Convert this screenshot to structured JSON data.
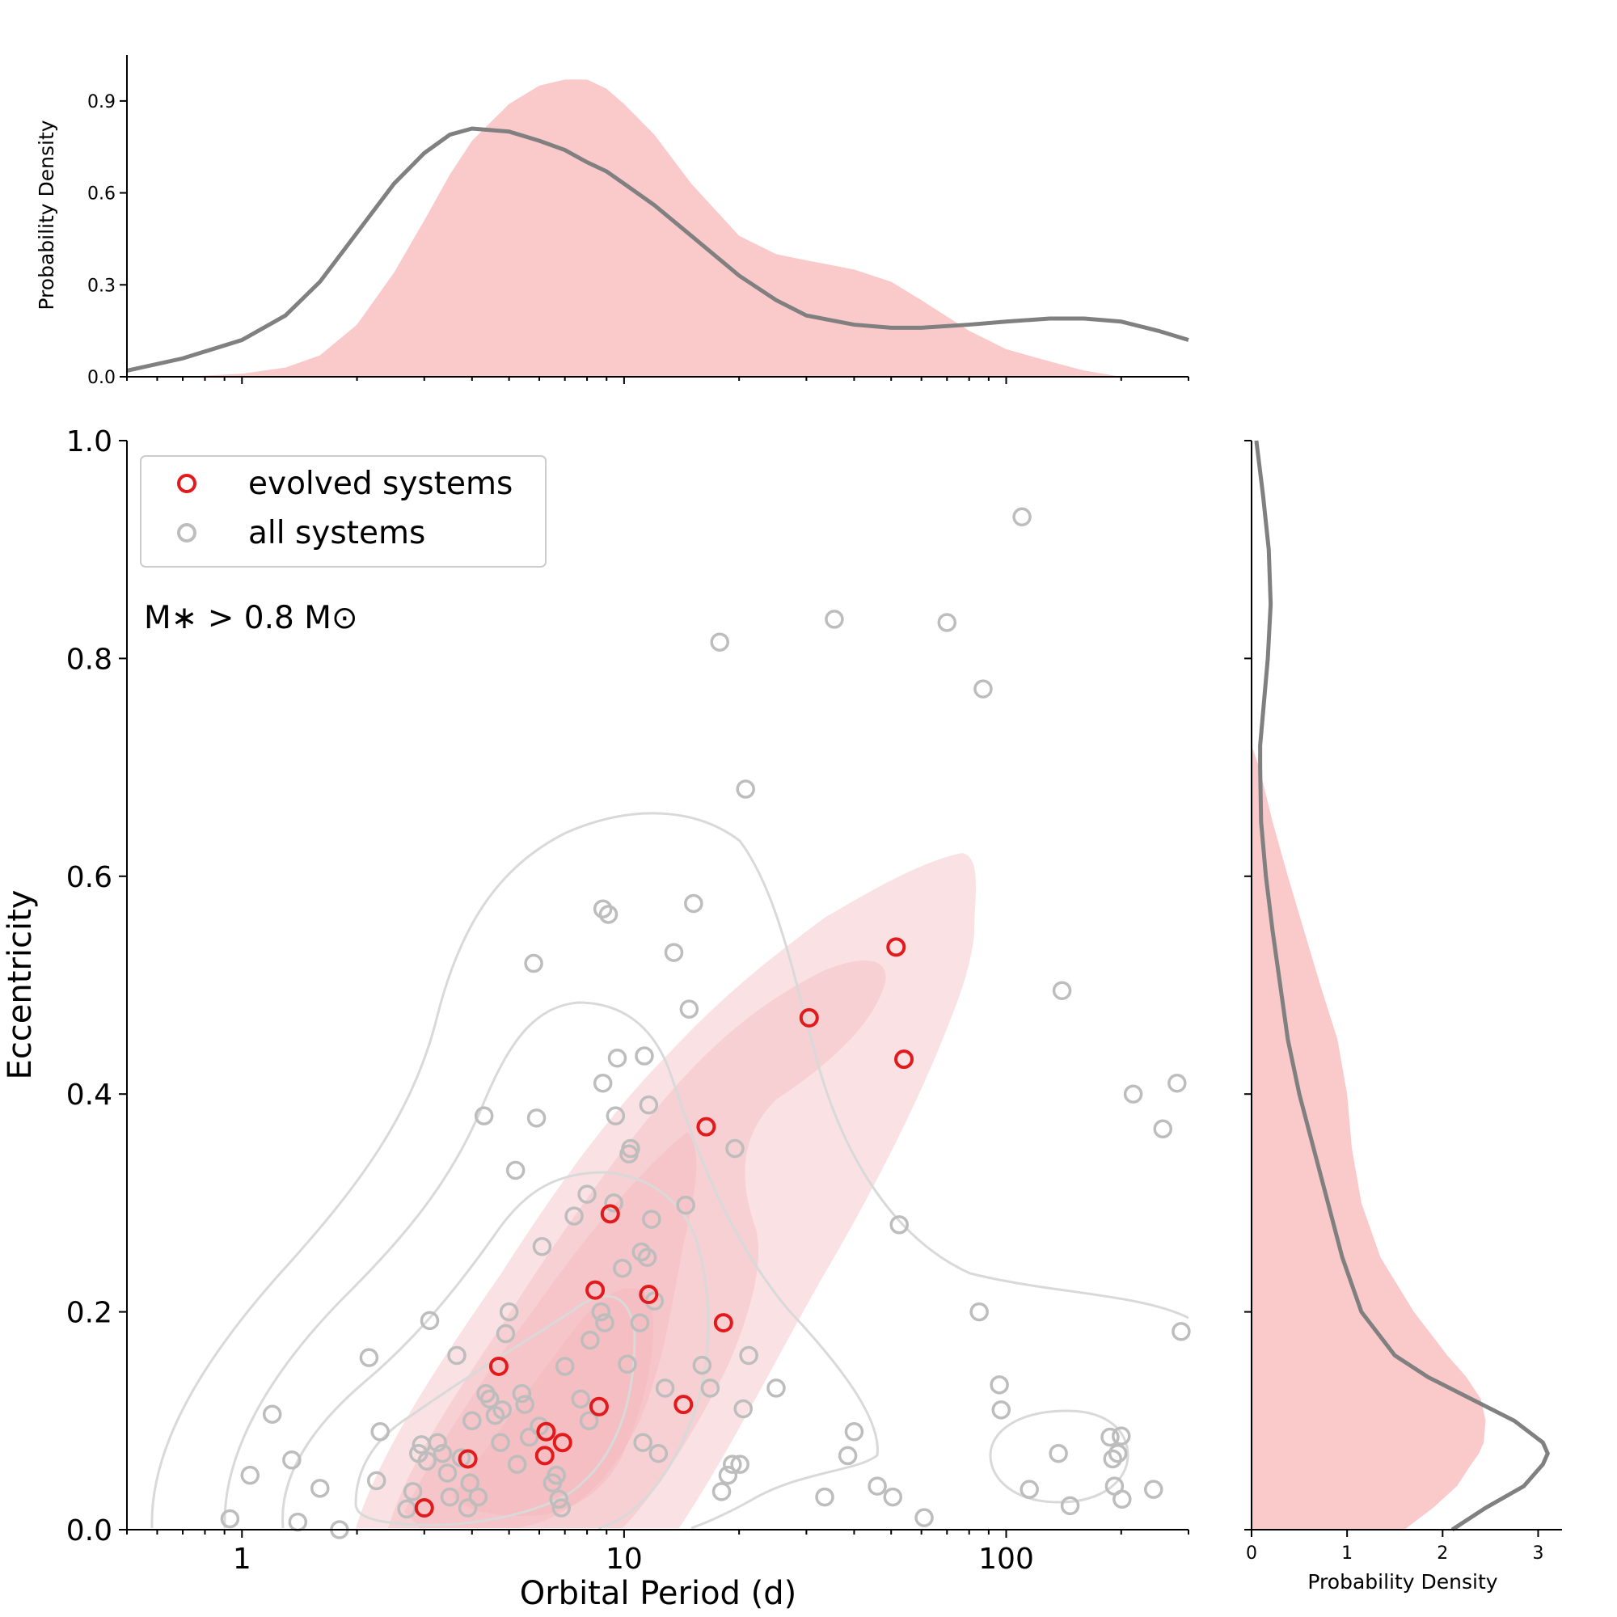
{
  "chart_data": {
    "type": "scatter",
    "main": {
      "xlabel": "Orbital Period (d)",
      "ylabel": "Eccentricity",
      "xscale": "log",
      "xlim": [
        0.5,
        300
      ],
      "ylim": [
        0,
        1
      ],
      "xticks": [
        1,
        10,
        100
      ],
      "xtick_labels": [
        "1",
        "10",
        "100"
      ],
      "yticks": [
        0,
        0.2,
        0.4,
        0.6,
        0.8,
        1.0
      ],
      "ytick_labels": [
        "0.0",
        "0.2",
        "0.4",
        "0.6",
        "0.8",
        "1.0"
      ],
      "annotation": "M∗ > 0.8 M⊙",
      "legend_position": "upper-left",
      "series": [
        {
          "name": "evolved systems",
          "marker": "open-circle",
          "color": "#e31a1c",
          "x": [
            3.0,
            3.9,
            4.7,
            6.2,
            6.25,
            6.9,
            8.4,
            8.6,
            9.2,
            11.6,
            14.3,
            16.4,
            18.2,
            30.5,
            51.5,
            54.0
          ],
          "y": [
            0.02,
            0.065,
            0.15,
            0.068,
            0.09,
            0.08,
            0.22,
            0.113,
            0.29,
            0.216,
            0.115,
            0.37,
            0.19,
            0.47,
            0.535,
            0.432
          ]
        },
        {
          "name": "all systems",
          "marker": "open-circle",
          "color": "#bdbdbd",
          "x": [
            0.93,
            1.05,
            1.2,
            1.35,
            1.4,
            1.6,
            1.8,
            2.15,
            2.25,
            2.3,
            2.7,
            2.8,
            2.9,
            2.95,
            3.05,
            3.1,
            3.25,
            3.35,
            3.45,
            3.5,
            3.65,
            3.75,
            3.9,
            3.95,
            4.0,
            4.15,
            4.3,
            4.35,
            4.45,
            4.6,
            4.75,
            4.8,
            4.9,
            5.0,
            5.2,
            5.25,
            5.4,
            5.5,
            5.65,
            5.8,
            5.9,
            6.0,
            6.1,
            6.5,
            6.65,
            6.75,
            6.85,
            7.0,
            7.4,
            7.7,
            8.0,
            8.1,
            8.15,
            8.7,
            8.8,
            8.8,
            8.9,
            9.1,
            9.4,
            9.5,
            9.6,
            9.9,
            10.2,
            10.3,
            10.4,
            11.0,
            11.1,
            11.2,
            11.3,
            11.5,
            11.6,
            11.8,
            12.0,
            12.3,
            12.8,
            13.5,
            14.5,
            14.8,
            15.2,
            16.0,
            16.8,
            17.8,
            18.0,
            18.7,
            19.2,
            19.5,
            20.1,
            20.5,
            20.8,
            21.2,
            25.0,
            33.5,
            35.5,
            38.5,
            40.0,
            46.0,
            50.5,
            52.5,
            61.0,
            70.0,
            85.0,
            87.0,
            96.0,
            97.0,
            110.0,
            115.0,
            137.0,
            140.0,
            147.0,
            187.0,
            190.0,
            192.0,
            196.0,
            200.0,
            201.0,
            215.0,
            243.0,
            257.0,
            280.0,
            287.0
          ],
          "y": [
            0.01,
            0.05,
            0.106,
            0.064,
            0.007,
            0.038,
            0.0,
            0.158,
            0.045,
            0.09,
            0.019,
            0.035,
            0.07,
            0.078,
            0.063,
            0.192,
            0.08,
            0.07,
            0.052,
            0.03,
            0.16,
            0.066,
            0.02,
            0.043,
            0.1,
            0.03,
            0.38,
            0.125,
            0.12,
            0.105,
            0.08,
            0.11,
            0.18,
            0.2,
            0.33,
            0.06,
            0.125,
            0.115,
            0.085,
            0.52,
            0.378,
            0.095,
            0.26,
            0.043,
            0.05,
            0.028,
            0.02,
            0.15,
            0.288,
            0.12,
            0.308,
            0.1,
            0.174,
            0.2,
            0.57,
            0.41,
            0.19,
            0.565,
            0.3,
            0.38,
            0.433,
            0.24,
            0.152,
            0.345,
            0.35,
            0.19,
            0.255,
            0.08,
            0.435,
            0.25,
            0.39,
            0.285,
            0.21,
            0.07,
            0.13,
            0.53,
            0.298,
            0.478,
            0.575,
            0.151,
            0.13,
            0.815,
            0.035,
            0.05,
            0.06,
            0.35,
            0.06,
            0.111,
            0.68,
            0.16,
            0.13,
            0.03,
            0.836,
            0.068,
            0.09,
            0.04,
            0.03,
            0.28,
            0.011,
            0.833,
            0.2,
            0.772,
            0.133,
            0.11,
            0.93,
            0.037,
            0.07,
            0.495,
            0.022,
            0.085,
            0.065,
            0.04,
            0.07,
            0.086,
            0.028,
            0.4,
            0.037,
            0.368,
            0.41,
            0.182
          ]
        }
      ]
    },
    "top_marginal": {
      "ylabel": "Probability Density",
      "ylim": [
        0,
        1.05
      ],
      "yticks": [
        0.0,
        0.3,
        0.6,
        0.9
      ],
      "ytick_labels": [
        "0.0",
        "0.3",
        "0.6",
        "0.9"
      ],
      "evolved_fill_color": "#f8b4b4",
      "all_line_color": "#808080",
      "x": [
        0.5,
        0.7,
        1.0,
        1.3,
        1.6,
        2.0,
        2.5,
        3.0,
        3.5,
        4.0,
        5.0,
        6.0,
        7.0,
        8.0,
        9.0,
        10.0,
        12.0,
        15.0,
        20.0,
        25.0,
        30.0,
        40.0,
        50.0,
        60.0,
        80.0,
        100.0,
        130.0,
        160.0,
        200.0,
        250.0,
        300.0
      ],
      "evolved_density": [
        0.0,
        0.0,
        0.01,
        0.03,
        0.07,
        0.17,
        0.34,
        0.51,
        0.66,
        0.77,
        0.89,
        0.95,
        0.97,
        0.97,
        0.94,
        0.89,
        0.79,
        0.63,
        0.46,
        0.4,
        0.38,
        0.35,
        0.31,
        0.25,
        0.15,
        0.09,
        0.05,
        0.02,
        0.0,
        0.0,
        0.0
      ],
      "all_density": [
        0.02,
        0.06,
        0.12,
        0.2,
        0.31,
        0.47,
        0.63,
        0.73,
        0.79,
        0.81,
        0.8,
        0.77,
        0.74,
        0.7,
        0.67,
        0.63,
        0.56,
        0.46,
        0.33,
        0.25,
        0.2,
        0.17,
        0.16,
        0.16,
        0.17,
        0.18,
        0.19,
        0.19,
        0.18,
        0.15,
        0.12
      ]
    },
    "right_marginal": {
      "xlabel": "Probability Density",
      "xlim": [
        0,
        3.25
      ],
      "xticks": [
        0,
        1,
        2,
        3
      ],
      "xtick_labels": [
        "0",
        "1",
        "2",
        "3"
      ],
      "y": [
        0.0,
        0.02,
        0.04,
        0.06,
        0.07,
        0.08,
        0.1,
        0.12,
        0.14,
        0.16,
        0.2,
        0.25,
        0.3,
        0.35,
        0.4,
        0.45,
        0.5,
        0.55,
        0.6,
        0.65,
        0.7,
        0.72,
        0.75,
        0.8,
        0.85,
        0.9,
        0.95,
        1.0
      ],
      "evolved_density": [
        1.6,
        1.9,
        2.15,
        2.3,
        2.38,
        2.43,
        2.45,
        2.4,
        2.25,
        2.05,
        1.7,
        1.35,
        1.15,
        1.05,
        1.0,
        0.9,
        0.72,
        0.55,
        0.38,
        0.22,
        0.08,
        0.0,
        0.0,
        0.0,
        0.0,
        0.0,
        0.0,
        0.0
      ],
      "all_density": [
        2.1,
        2.45,
        2.85,
        3.05,
        3.1,
        3.05,
        2.75,
        2.3,
        1.85,
        1.5,
        1.15,
        0.95,
        0.8,
        0.65,
        0.5,
        0.38,
        0.3,
        0.22,
        0.15,
        0.1,
        0.09,
        0.09,
        0.12,
        0.17,
        0.2,
        0.18,
        0.12,
        0.05
      ]
    }
  }
}
